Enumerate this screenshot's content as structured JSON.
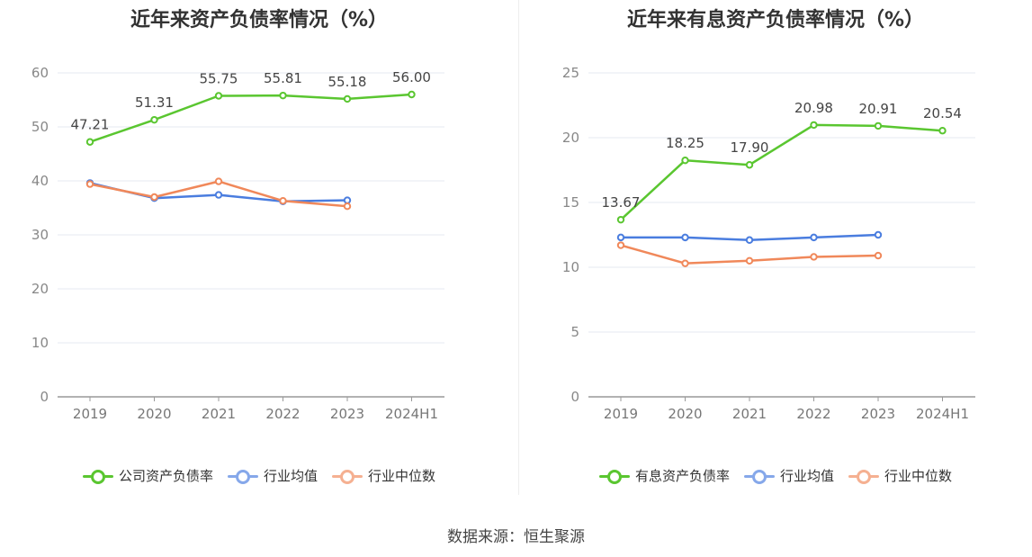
{
  "source": "数据来源：恒生聚源",
  "chart_data": [
    {
      "type": "line",
      "title": "近年来资产负债率情况（%）",
      "categories": [
        "2019",
        "2020",
        "2021",
        "2022",
        "2023",
        "2024H1"
      ],
      "ylim": [
        0,
        60
      ],
      "yticks": [
        0,
        10,
        20,
        30,
        40,
        50,
        60
      ],
      "grid": true,
      "legend_position": "bottom",
      "series": [
        {
          "name": "公司资产负债率",
          "color": "#5ac630",
          "labeled": true,
          "values": [
            47.21,
            51.31,
            55.75,
            55.81,
            55.18,
            56.0
          ]
        },
        {
          "name": "行业均值",
          "color": "#4a7ddf",
          "labeled": false,
          "values": [
            39.6,
            36.8,
            37.4,
            36.2,
            36.4,
            null
          ]
        },
        {
          "name": "行业中位数",
          "color": "#f0885a",
          "labeled": false,
          "values": [
            39.4,
            37.0,
            39.9,
            36.3,
            35.3,
            null
          ]
        }
      ]
    },
    {
      "type": "line",
      "title": "近年来有息资产负债率情况（%）",
      "categories": [
        "2019",
        "2020",
        "2021",
        "2022",
        "2023",
        "2024H1"
      ],
      "ylim": [
        0,
        25
      ],
      "yticks": [
        0,
        5,
        10,
        15,
        20,
        25
      ],
      "grid": true,
      "legend_position": "bottom",
      "series": [
        {
          "name": "有息资产负债率",
          "color": "#5ac630",
          "labeled": true,
          "values": [
            13.67,
            18.25,
            17.9,
            20.98,
            20.91,
            20.54
          ]
        },
        {
          "name": "行业均值",
          "color": "#4a7ddf",
          "labeled": false,
          "values": [
            12.3,
            12.3,
            12.1,
            12.3,
            12.5,
            null
          ]
        },
        {
          "name": "行业中位数",
          "color": "#f0885a",
          "labeled": false,
          "values": [
            11.7,
            10.3,
            10.5,
            10.8,
            10.9,
            null
          ]
        }
      ]
    }
  ]
}
